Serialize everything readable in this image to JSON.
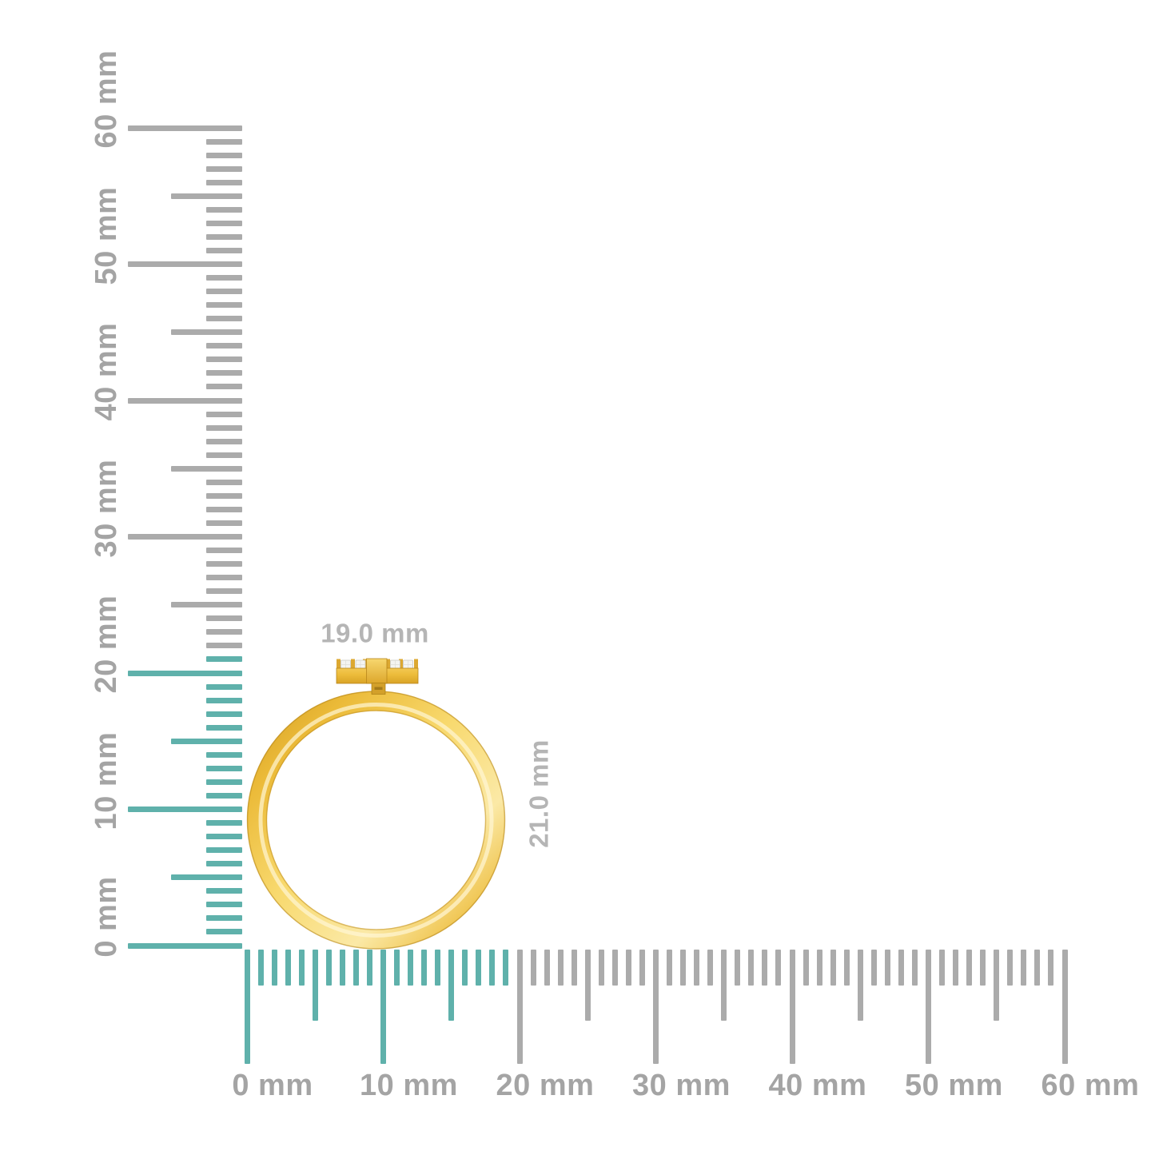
{
  "rulers": {
    "unit": "mm",
    "min_mm": 0,
    "max_mm": 60,
    "minor_step_mm": 1,
    "half_step_mm": 5,
    "major_step_mm": 10,
    "tick_color": "#ABABAB",
    "highlight_color": "#5FB1AB",
    "label_color": "#A4A4A4",
    "vertical": {
      "labels": [
        "0 mm",
        "10 mm",
        "20 mm",
        "30 mm",
        "40 mm",
        "50 mm",
        "60 mm"
      ],
      "highlight_from_mm": 0,
      "highlight_to_mm": 21
    },
    "horizontal": {
      "labels": [
        "0 mm",
        "10 mm",
        "20 mm",
        "30 mm",
        "40 mm",
        "50 mm",
        "60 mm"
      ],
      "highlight_from_mm": 0,
      "highlight_to_mm": 19
    }
  },
  "dimension_labels": {
    "width": "19.0 mm",
    "height": "21.0 mm",
    "color": "#B5B5B5"
  },
  "ring": {
    "name": "gold-ring-side-view-with-diamond-bar",
    "gold_dark": "#CE9922",
    "gold_mid": "#EBBA38",
    "gold_bright": "#F8D96E",
    "gold_pale": "#FBE9A6",
    "gold_deep": "#D9A42A",
    "stone_color": "#F4F4F1",
    "visible_stone_count": 4
  }
}
